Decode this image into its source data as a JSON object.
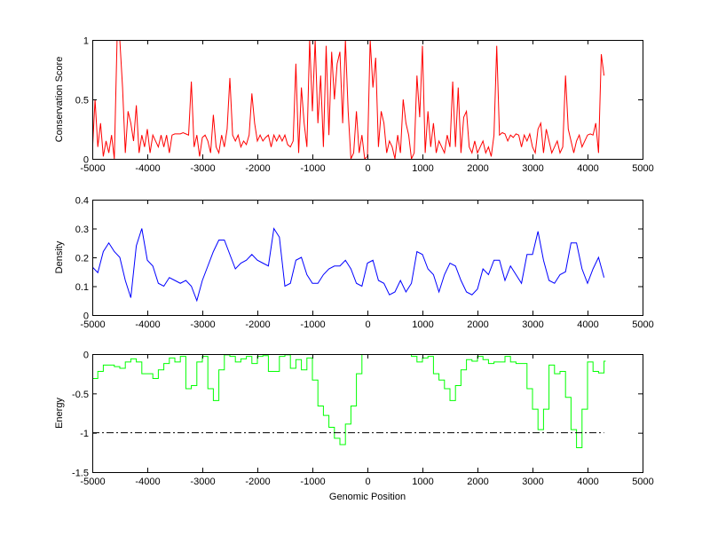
{
  "chart_data": [
    {
      "type": "line",
      "ylabel": "Conservation Score",
      "xlabel": "",
      "xlim": [
        -5000,
        5000
      ],
      "ylim": [
        0,
        1
      ],
      "xticks": [
        "-5000",
        "-4000",
        "-3000",
        "-2000",
        "-1000",
        "0",
        "1000",
        "2000",
        "3000",
        "4000",
        "5000"
      ],
      "yticks": [
        "0",
        "0.5",
        "1"
      ],
      "color": "#ff0000",
      "step": false,
      "x_start": -5000,
      "x_step": 50,
      "values": [
        0.05,
        0.5,
        0.1,
        0.3,
        0.02,
        0.15,
        0.05,
        0.2,
        0.0,
        1.0,
        1.0,
        0.6,
        0.05,
        0.4,
        0.3,
        0.15,
        0.45,
        0.05,
        0.2,
        0.1,
        0.25,
        0.05,
        0.2,
        0.15,
        0.1,
        0.2,
        0.1,
        0.2,
        0.05,
        0.2,
        0.21,
        0.21,
        0.21,
        0.22,
        0.21,
        0.2,
        0.65,
        0.1,
        0.2,
        0.02,
        0.18,
        0.2,
        0.15,
        0.05,
        0.37,
        0.1,
        0.05,
        0.2,
        0.1,
        0.25,
        0.68,
        0.2,
        0.15,
        0.2,
        0.1,
        0.15,
        0.12,
        0.2,
        0.55,
        0.3,
        0.15,
        0.2,
        0.15,
        0.18,
        0.2,
        0.1,
        0.2,
        0.15,
        0.2,
        0.15,
        0.2,
        0.12,
        0.1,
        0.15,
        0.8,
        0.05,
        0.6,
        0.3,
        0.1,
        1.0,
        0.4,
        1.0,
        0.3,
        0.7,
        0.1,
        0.95,
        0.2,
        0.9,
        0.5,
        0.8,
        0.9,
        0.3,
        1.0,
        0.4,
        0.0,
        0.05,
        0.4,
        0.05,
        0.2,
        0.0,
        0.02,
        1.0,
        0.6,
        0.85,
        0.1,
        0.4,
        0.3,
        0.05,
        0.15,
        0.1,
        0.0,
        0.2,
        0.05,
        0.5,
        0.3,
        0.2,
        0.0,
        0.05,
        0.7,
        0.35,
        0.95,
        0.05,
        0.4,
        0.1,
        0.3,
        0.05,
        0.15,
        0.1,
        0.05,
        0.2,
        0.1,
        0.65,
        0.1,
        0.6,
        0.05,
        0.35,
        0.4,
        0.1,
        0.05,
        0.15,
        0.05,
        0.1,
        0.15,
        0.05,
        0.1,
        0.02,
        0.2,
        0.95,
        0.2,
        0.22,
        0.21,
        0.15,
        0.2,
        0.18,
        0.21,
        0.2,
        0.1,
        0.2,
        0.15,
        0.21,
        0.1,
        0.05,
        0.25,
        0.3,
        0.05,
        0.25,
        0.15,
        0.05,
        0.1,
        0.15,
        0.05,
        0.1,
        0.7,
        0.25,
        0.15,
        0.05,
        0.15,
        0.2,
        0.1,
        0.15,
        0.2,
        0.21,
        0.2,
        0.3,
        0.05,
        0.88,
        0.7
      ]
    },
    {
      "type": "line",
      "ylabel": "Density",
      "xlabel": "",
      "xlim": [
        -5000,
        5000
      ],
      "ylim": [
        0,
        0.4
      ],
      "xticks": [
        "-5000",
        "-4000",
        "-3000",
        "-2000",
        "-1000",
        "0",
        "1000",
        "2000",
        "3000",
        "4000",
        "5000"
      ],
      "yticks": [
        "0",
        "0.1",
        "0.2",
        "0.3",
        "0.4"
      ],
      "color": "#0000ff",
      "step": false,
      "x_start": -5000,
      "x_step": 100,
      "values": [
        0.167,
        0.147,
        0.22,
        0.25,
        0.22,
        0.2,
        0.12,
        0.06,
        0.24,
        0.3,
        0.19,
        0.17,
        0.11,
        0.1,
        0.13,
        0.12,
        0.11,
        0.12,
        0.1,
        0.05,
        0.12,
        0.17,
        0.22,
        0.26,
        0.26,
        0.21,
        0.16,
        0.18,
        0.19,
        0.21,
        0.19,
        0.18,
        0.17,
        0.3,
        0.27,
        0.1,
        0.11,
        0.19,
        0.2,
        0.14,
        0.11,
        0.11,
        0.14,
        0.16,
        0.17,
        0.17,
        0.19,
        0.16,
        0.11,
        0.1,
        0.18,
        0.19,
        0.12,
        0.11,
        0.07,
        0.08,
        0.12,
        0.08,
        0.11,
        0.22,
        0.21,
        0.16,
        0.14,
        0.08,
        0.14,
        0.18,
        0.17,
        0.12,
        0.08,
        0.07,
        0.09,
        0.16,
        0.14,
        0.19,
        0.19,
        0.12,
        0.17,
        0.14,
        0.11,
        0.21,
        0.21,
        0.29,
        0.19,
        0.12,
        0.11,
        0.14,
        0.15,
        0.25,
        0.25,
        0.16,
        0.11,
        0.16,
        0.2,
        0.13
      ]
    },
    {
      "type": "line",
      "ylabel": "Energy",
      "xlabel": "Genomic Position",
      "xlim": [
        -5000,
        5000
      ],
      "ylim": [
        -1.5,
        0
      ],
      "xticks": [
        "-5000",
        "-4000",
        "-3000",
        "-2000",
        "-1000",
        "0",
        "1000",
        "2000",
        "3000",
        "4000",
        "5000"
      ],
      "yticks": [
        "-1.5",
        "-1",
        "-0.5",
        "0"
      ],
      "color": "#00ff00",
      "step": true,
      "x_start": -5000,
      "x_step": 100,
      "values": [
        -0.31,
        -0.22,
        -0.14,
        -0.14,
        -0.16,
        -0.18,
        -0.1,
        -0.06,
        -0.1,
        -0.25,
        -0.25,
        -0.31,
        -0.2,
        -0.12,
        -0.05,
        -0.1,
        -0.03,
        -0.44,
        -0.4,
        -0.1,
        -0.03,
        -0.44,
        -0.59,
        -0.2,
        -0.01,
        -0.03,
        -0.1,
        -0.06,
        -0.03,
        -0.12,
        -0.03,
        -0.02,
        -0.22,
        -0.22,
        -0.03,
        -0.01,
        -0.18,
        -0.07,
        -0.2,
        -0.05,
        -0.33,
        -0.66,
        -0.78,
        -0.93,
        -1.07,
        -1.15,
        -0.89,
        -0.66,
        -0.25,
        0,
        0,
        0,
        0,
        0,
        0,
        0,
        0,
        0,
        -0.03,
        -0.1,
        -0.05,
        -0.03,
        -0.25,
        -0.33,
        -0.44,
        -0.59,
        -0.4,
        -0.2,
        -0.07,
        -0.09,
        -0.03,
        -0.07,
        -0.12,
        -0.1,
        -0.1,
        -0.03,
        -0.1,
        -0.12,
        -0.12,
        -0.44,
        -0.7,
        -0.96,
        -0.7,
        -0.14,
        -0.25,
        -0.22,
        -0.55,
        -0.96,
        -1.19,
        -0.7,
        -0.1,
        -0.22,
        -0.24,
        -0.09
      ],
      "reference_line": {
        "y": -1,
        "x_range": [
          -5000,
          4300
        ],
        "style": "dash-dot",
        "color": "#000000"
      }
    }
  ]
}
